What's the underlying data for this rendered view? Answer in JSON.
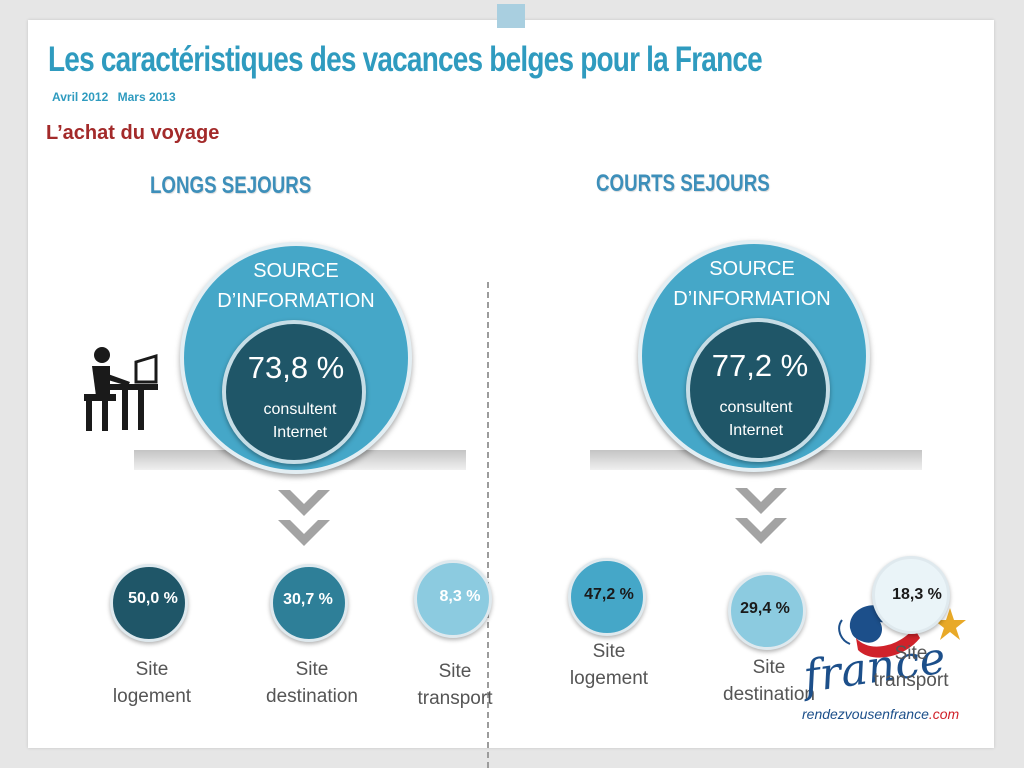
{
  "title": "Les caractéristiques des vacances belges pour la France",
  "period": {
    "from": "Avril 2012",
    "to": "Mars 2013"
  },
  "section": "L’achat du voyage",
  "columns": [
    {
      "title": "LONGS SEJOURS",
      "source_line1": "SOURCE",
      "source_line2": "D’INFORMATION",
      "internet_pct": "73,8 %",
      "internet_line1": "consultent",
      "internet_line2": "Internet",
      "sites": [
        {
          "pct": "50,0 %",
          "line1": "Site",
          "line2": "logement"
        },
        {
          "pct": "30,7 %",
          "line1": "Site",
          "line2": "destination"
        },
        {
          "pct": "8,3 %",
          "line1": "Site",
          "line2": "transport"
        }
      ]
    },
    {
      "title": "COURTS SEJOURS",
      "source_line1": "SOURCE",
      "source_line2": "D’INFORMATION",
      "internet_pct": "77,2 %",
      "internet_line1": "consultent",
      "internet_line2": "Internet",
      "sites": [
        {
          "pct": "47,2 %",
          "line1": "Site",
          "line2": "logement"
        },
        {
          "pct": "29,4 %",
          "line1": "Site",
          "line2": "destination"
        },
        {
          "pct": "18,3 %",
          "line1": "Site",
          "line2": "transport"
        }
      ]
    }
  ],
  "logo": {
    "word": "france",
    "site": "rendezvousenfrance",
    "tld": ".com"
  },
  "icons": {
    "person": "person-at-desk-icon",
    "arrow": "double-chevron-down-icon"
  },
  "colors": {
    "title": "#2f9bbf",
    "section": "#a32a2a",
    "circle_outer": "#45a7c8",
    "circle_dark": "#1f5668",
    "circle_mid": "#2e7f98",
    "circle_light": "#8ccbe0",
    "circle_pale": "#eaf4f8"
  }
}
